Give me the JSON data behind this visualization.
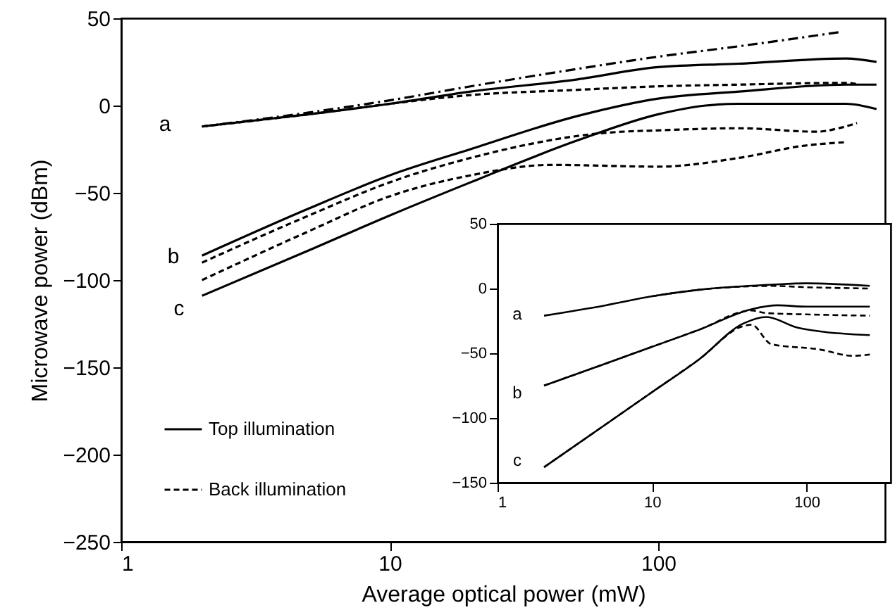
{
  "chart_data": [
    {
      "type": "line",
      "xlabel": "Average optical power (mW)",
      "ylabel": "Microwave power (dBm)",
      "log": "x",
      "xlim": [
        1,
        700
      ],
      "xticks": [
        1,
        10,
        100
      ],
      "ylim": [
        -250,
        50
      ],
      "yticks": [
        -250,
        -200,
        -150,
        -100,
        -50,
        0,
        50
      ],
      "grid": false,
      "legend": "bottom left",
      "marker": "none",
      "series": [
        {
          "name": "Top illumination",
          "color": "#000000",
          "line_style": "solid",
          "x": [
            2,
            5,
            10,
            20,
            50,
            100,
            200,
            500,
            650
          ],
          "values": [
            -12,
            -5,
            1,
            8,
            15,
            22,
            24,
            27,
            25
          ]
        },
        {
          "color": "#000000",
          "line_style": "dotted",
          "x": [
            2,
            5,
            10,
            20,
            50,
            100,
            200,
            470
          ],
          "values": [
            -12,
            -4,
            3,
            11,
            21,
            28,
            34,
            42
          ]
        },
        {
          "name": "Back illumination",
          "color": "#000000",
          "line_style": "dashed",
          "x": [
            2,
            5,
            10,
            20,
            50,
            100,
            200,
            500,
            560
          ],
          "values": [
            -12,
            -5,
            1,
            6,
            9,
            11,
            12,
            13,
            12
          ]
        },
        {
          "color": "#000000",
          "line_style": "solid",
          "x": [
            2,
            5,
            10,
            20,
            50,
            100,
            200,
            500,
            650
          ],
          "values": [
            -86,
            -59,
            -40,
            -25,
            -6,
            4,
            8,
            12,
            12
          ]
        },
        {
          "color": "#000000",
          "line_style": "dashed",
          "x": [
            2,
            5,
            10,
            20,
            60,
            110,
            200,
            390,
            470,
            550
          ],
          "values": [
            -90,
            -63,
            -44,
            -30,
            -16,
            -14,
            -13,
            -15,
            -13,
            -10
          ]
        },
        {
          "color": "#000000",
          "line_style": "dashed",
          "x": [
            2,
            5,
            10,
            20,
            40,
            100,
            200,
            350,
            500
          ],
          "values": [
            -100,
            -72,
            -52,
            -40,
            -34,
            -35,
            -30,
            -23,
            -21
          ]
        },
        {
          "color": "#000000",
          "line_style": "solid",
          "x": [
            2,
            5,
            10,
            20,
            50,
            100,
            150,
            200,
            500,
            650
          ],
          "values": [
            -109,
            -83,
            -63,
            -44,
            -20,
            -5,
            0,
            1,
            1,
            -2
          ]
        }
      ],
      "annotations": [
        "a",
        "b",
        "c"
      ]
    },
    {
      "type": "line",
      "log": "x",
      "xlim": [
        1,
        350
      ],
      "xticks": [
        1,
        10,
        100
      ],
      "ylim": [
        -150,
        50
      ],
      "yticks": [
        -150,
        -100,
        -50,
        0,
        50
      ],
      "grid": false,
      "marker": "none",
      "series": [
        {
          "color": "#000000",
          "line_style": "solid",
          "x": [
            2,
            5,
            10,
            20,
            60,
            100,
            256
          ],
          "values": [
            -21,
            -13,
            -6,
            -1,
            3,
            4,
            2
          ]
        },
        {
          "color": "#000000",
          "line_style": "dashed",
          "x": [
            10,
            20,
            60,
            100,
            256
          ],
          "values": [
            -6,
            -1,
            2,
            1,
            0
          ]
        },
        {
          "color": "#000000",
          "line_style": "solid",
          "x": [
            2,
            5,
            10,
            20,
            44,
            65,
            100,
            256
          ],
          "values": [
            -75,
            -58,
            -45,
            -32,
            -16,
            -13,
            -14,
            -14
          ]
        },
        {
          "color": "#000000",
          "line_style": "dashed",
          "x": [
            2,
            5,
            10,
            20,
            44,
            55,
            100,
            256
          ],
          "values": [
            -75,
            -58,
            -45,
            -32,
            -17,
            -19,
            -20,
            -21
          ]
        },
        {
          "color": "#000000",
          "line_style": "solid",
          "x": [
            2,
            5,
            10,
            20,
            39,
            55,
            86,
            120,
            256
          ],
          "values": [
            -138,
            -105,
            -80,
            -55,
            -27,
            -22,
            -30,
            -33,
            -36
          ]
        },
        {
          "color": "#000000",
          "line_style": "dashed",
          "x": [
            2,
            5,
            10,
            20,
            39,
            44,
            59,
            120,
            200,
            256
          ],
          "values": [
            -138,
            -105,
            -80,
            -55,
            -29,
            -28,
            -43,
            -47,
            -52,
            -51
          ]
        }
      ],
      "annotations": [
        "a",
        "b",
        "c"
      ]
    }
  ]
}
